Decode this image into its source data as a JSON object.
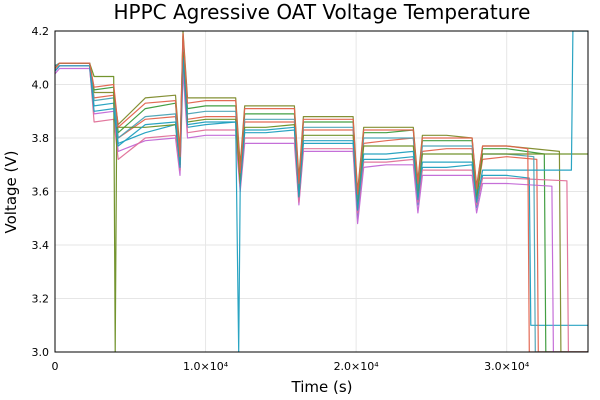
{
  "chart_data": {
    "type": "line",
    "title": "HPPC Agressive OAT Voltage Temperature",
    "xlabel": "Time (s)",
    "ylabel": "Voltage (V)",
    "xlim": [
      0,
      35400
    ],
    "ylim": [
      3.0,
      4.2
    ],
    "grid": true,
    "legend": "none",
    "x_ticks": [
      {
        "value": 0,
        "label": "0"
      },
      {
        "value": 10000,
        "label": "1.0×10⁴"
      },
      {
        "value": 20000,
        "label": "2.0×10⁴"
      },
      {
        "value": 30000,
        "label": "3.0×10⁴"
      }
    ],
    "y_ticks": [
      {
        "value": 3.0,
        "label": "3.0"
      },
      {
        "value": 3.2,
        "label": "3.2"
      },
      {
        "value": 3.4,
        "label": "3.4"
      },
      {
        "value": 3.6,
        "label": "3.6"
      },
      {
        "value": 3.8,
        "label": "3.8"
      },
      {
        "value": 4.0,
        "label": "4.0"
      },
      {
        "value": 4.2,
        "label": "4.2"
      }
    ],
    "colors": [
      "#1f9fbf",
      "#e2624c",
      "#3a9a3a",
      "#c267d6",
      "#7d8a2a",
      "#e07098",
      "#4aa3b5",
      "#6b8e23"
    ],
    "series": [
      {
        "x": [
          0,
          300,
          2300,
          2600,
          3900,
          4200,
          6000,
          8000,
          8300,
          8500,
          8800,
          10000,
          12000,
          12300,
          12600,
          14000,
          15900,
          16200,
          16500,
          18000,
          19800,
          20100,
          20500,
          22000,
          23800,
          24100,
          24400,
          26000,
          27700,
          28000,
          28400,
          30000,
          31500,
          31600,
          35400
        ],
        "y": [
          4.05,
          4.07,
          4.07,
          3.92,
          3.93,
          3.78,
          3.82,
          3.85,
          3.68,
          4.1,
          3.84,
          3.85,
          3.86,
          3.62,
          3.82,
          3.82,
          3.83,
          3.57,
          3.78,
          3.78,
          3.78,
          3.5,
          3.72,
          3.72,
          3.73,
          3.55,
          3.69,
          3.69,
          3.7,
          3.54,
          3.66,
          3.66,
          3.65,
          3.1,
          3.1
        ]
      },
      {
        "x": [
          0,
          300,
          2300,
          2600,
          3900,
          4200,
          6000,
          8000,
          8300,
          8500,
          8800,
          10000,
          12000,
          12300,
          12600,
          14000,
          15900,
          16200,
          16500,
          18000,
          19800,
          20100,
          20500,
          22000,
          23800,
          24100,
          24400,
          26000,
          27700,
          28000,
          28400,
          30000,
          32000,
          32100,
          35400
        ],
        "y": [
          4.06,
          4.08,
          4.08,
          3.95,
          3.96,
          3.8,
          3.87,
          3.88,
          3.7,
          4.15,
          3.87,
          3.88,
          3.88,
          3.64,
          3.86,
          3.86,
          3.86,
          3.6,
          3.83,
          3.83,
          3.83,
          3.55,
          3.78,
          3.79,
          3.8,
          3.6,
          3.75,
          3.76,
          3.76,
          3.58,
          3.72,
          3.73,
          3.72,
          3.0,
          3.0
        ]
      },
      {
        "x": [
          0,
          300,
          2300,
          2600,
          3900,
          4200,
          6000,
          8000,
          8300,
          8500,
          8800,
          10000,
          12000,
          12300,
          12600,
          14000,
          15900,
          16200,
          16500,
          18000,
          19800,
          20100,
          20500,
          22000,
          23800,
          24100,
          24400,
          26000,
          27700,
          28000,
          28400,
          30000,
          32500,
          32600,
          35400
        ],
        "y": [
          4.07,
          4.08,
          4.08,
          3.98,
          3.99,
          3.82,
          3.91,
          3.93,
          3.72,
          4.18,
          3.91,
          3.92,
          3.92,
          3.66,
          3.89,
          3.89,
          3.89,
          3.62,
          3.86,
          3.86,
          3.86,
          3.58,
          3.82,
          3.82,
          3.83,
          3.62,
          3.79,
          3.79,
          3.79,
          3.6,
          3.76,
          3.76,
          3.74,
          3.0,
          3.0
        ]
      },
      {
        "x": [
          0,
          300,
          2300,
          2600,
          3900,
          4200,
          6000,
          8000,
          8300,
          8500,
          8800,
          10000,
          12000,
          12300,
          12600,
          14000,
          15900,
          16200,
          16500,
          18000,
          19800,
          20100,
          20500,
          22000,
          23800,
          24100,
          24400,
          26000,
          27700,
          28000,
          28400,
          30000,
          33000,
          33100,
          35400
        ],
        "y": [
          4.04,
          4.06,
          4.06,
          3.89,
          3.9,
          3.75,
          3.79,
          3.8,
          3.66,
          4.05,
          3.8,
          3.81,
          3.81,
          3.6,
          3.78,
          3.78,
          3.78,
          3.55,
          3.75,
          3.75,
          3.75,
          3.48,
          3.69,
          3.7,
          3.7,
          3.52,
          3.66,
          3.66,
          3.66,
          3.52,
          3.63,
          3.63,
          3.62,
          3.0,
          3.0
        ]
      },
      {
        "x": [
          0,
          300,
          2300,
          2600,
          3900,
          4200,
          6000,
          8000,
          8300,
          8500,
          8800,
          10000,
          12000,
          12300,
          12600,
          14000,
          15900,
          16200,
          16500,
          18000,
          19800,
          20100,
          20500,
          22000,
          23800,
          24100,
          24400,
          26000,
          27700,
          28000,
          28400,
          30000,
          33500,
          33600,
          35400
        ],
        "y": [
          4.06,
          4.08,
          4.08,
          3.97,
          3.97,
          3.85,
          3.95,
          3.96,
          3.75,
          4.2,
          3.95,
          3.95,
          3.95,
          3.7,
          3.92,
          3.92,
          3.92,
          3.65,
          3.88,
          3.88,
          3.88,
          3.6,
          3.84,
          3.84,
          3.84,
          3.64,
          3.81,
          3.81,
          3.8,
          3.62,
          3.77,
          3.77,
          3.75,
          3.0,
          3.0
        ]
      },
      {
        "x": [
          0,
          300,
          2300,
          2600,
          3900,
          4200,
          6000,
          8000,
          8300,
          8500,
          8800,
          10000,
          12000,
          12300,
          12600,
          14000,
          15900,
          16200,
          16500,
          18000,
          19800,
          20100,
          20500,
          22000,
          23800,
          24100,
          24400,
          26000,
          27700,
          28000,
          28400,
          30000,
          34000,
          34100,
          35400
        ],
        "y": [
          4.05,
          4.07,
          4.07,
          3.86,
          3.87,
          3.72,
          3.8,
          3.81,
          3.68,
          4.08,
          3.82,
          3.83,
          3.83,
          3.61,
          3.8,
          3.8,
          3.8,
          3.56,
          3.76,
          3.76,
          3.76,
          3.52,
          3.71,
          3.71,
          3.72,
          3.56,
          3.68,
          3.68,
          3.68,
          3.55,
          3.65,
          3.65,
          3.64,
          3.0,
          3.0
        ]
      },
      {
        "x": [
          0,
          300,
          2300,
          2600,
          3900,
          4200,
          6000,
          8000,
          8300,
          8500,
          8800,
          10000,
          12000,
          12300,
          12600,
          14000,
          15900,
          16200,
          16500,
          18000,
          19800,
          20100,
          20500,
          22000,
          23800,
          24100,
          24400,
          26000,
          27700,
          28000,
          28400,
          30000,
          31800,
          31900,
          35400
        ],
        "y": [
          4.07,
          4.08,
          4.08,
          3.94,
          3.95,
          3.8,
          3.88,
          3.89,
          3.7,
          4.16,
          3.89,
          3.9,
          3.9,
          3.64,
          3.87,
          3.87,
          3.87,
          3.6,
          3.84,
          3.84,
          3.84,
          3.56,
          3.8,
          3.8,
          3.8,
          3.6,
          3.77,
          3.77,
          3.77,
          3.59,
          3.74,
          3.74,
          3.73,
          3.0,
          3.0
        ]
      },
      {
        "x": [
          0,
          300,
          2300,
          2600,
          3900,
          4000,
          4100,
          6000,
          8000,
          8300,
          8500,
          8800,
          10000,
          12000,
          12300,
          12600,
          14000,
          15900,
          16200,
          16500,
          18000,
          19800,
          20100,
          20500,
          22000,
          23800,
          24100,
          24400,
          26000,
          27700,
          28000,
          28400,
          30000,
          32000,
          35400
        ],
        "y": [
          4.06,
          4.08,
          4.08,
          4.03,
          4.03,
          3.0,
          3.84,
          3.84,
          3.85,
          3.7,
          4.12,
          3.86,
          3.87,
          3.87,
          3.63,
          3.84,
          3.84,
          3.85,
          3.58,
          3.81,
          3.81,
          3.81,
          3.54,
          3.77,
          3.77,
          3.77,
          3.58,
          3.74,
          3.74,
          3.74,
          3.57,
          3.74,
          3.74,
          3.74,
          3.74
        ]
      },
      {
        "x": [
          0,
          300,
          2300,
          2600,
          3900,
          4200,
          6000,
          8000,
          8300,
          8500,
          8800,
          10000,
          12000,
          12200,
          12300,
          12600,
          14000,
          15900,
          16200,
          16500,
          18000,
          19800,
          20100,
          20500,
          22000,
          23800,
          24100,
          24400,
          26000,
          27700,
          28000,
          28400,
          30000,
          34300,
          34400,
          35400
        ],
        "y": [
          4.05,
          4.07,
          4.07,
          3.9,
          3.91,
          3.77,
          3.85,
          3.86,
          3.69,
          4.1,
          3.85,
          3.86,
          3.86,
          3.0,
          3.62,
          3.83,
          3.83,
          3.84,
          3.58,
          3.79,
          3.79,
          3.79,
          3.53,
          3.74,
          3.74,
          3.75,
          3.57,
          3.71,
          3.71,
          3.71,
          3.56,
          3.68,
          3.68,
          3.68,
          4.2,
          4.2
        ]
      },
      {
        "x": [
          0,
          300,
          2300,
          2600,
          3900,
          4200,
          6000,
          8000,
          8300,
          8500,
          8800,
          10000,
          12000,
          12300,
          12600,
          14000,
          15900,
          16200,
          16500,
          18000,
          19800,
          20100,
          20500,
          22000,
          23800,
          24100,
          24400,
          26000,
          27700,
          28000,
          28400,
          30000,
          31400,
          31500,
          35400
        ],
        "y": [
          4.06,
          4.08,
          4.08,
          3.99,
          4.0,
          3.84,
          3.93,
          3.94,
          3.73,
          4.19,
          3.93,
          3.94,
          3.94,
          3.67,
          3.91,
          3.91,
          3.91,
          3.63,
          3.87,
          3.87,
          3.87,
          3.59,
          3.83,
          3.83,
          3.83,
          3.63,
          3.8,
          3.8,
          3.8,
          3.61,
          3.77,
          3.77,
          3.76,
          3.0,
          3.0
        ]
      }
    ]
  }
}
